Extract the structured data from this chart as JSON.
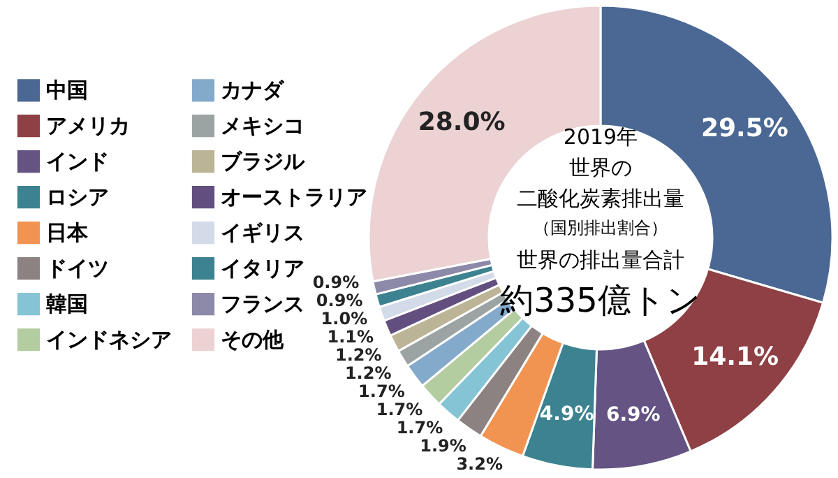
{
  "chart_data": {
    "type": "donut",
    "categories": [
      "中国",
      "アメリカ",
      "インド",
      "ロシア",
      "日本",
      "ドイツ",
      "韓国",
      "インドネシア",
      "カナダ",
      "メキシコ",
      "ブラジル",
      "オーストラリア",
      "イギリス",
      "イタリア",
      "フランス",
      "その他"
    ],
    "values": [
      29.5,
      14.1,
      6.9,
      4.9,
      3.2,
      1.9,
      1.7,
      1.7,
      1.7,
      1.2,
      1.2,
      1.1,
      1.0,
      0.9,
      0.9,
      28.0
    ],
    "colors": [
      "#4a6893",
      "#8e4044",
      "#645383",
      "#3c8290",
      "#f29451",
      "#8c8282",
      "#84c4d5",
      "#b3cca0",
      "#84aacb",
      "#9ca3a3",
      "#bcb496",
      "#634f7f",
      "#d3dae8",
      "#3d8290",
      "#8c8aa8",
      "#ecd2d3"
    ],
    "value_labels": [
      "29.5%",
      "14.1%",
      "6.9%",
      "4.9%",
      "3.2%",
      "1.9%",
      "1.7%",
      "1.7%",
      "1.7%",
      "1.2%",
      "1.2%",
      "1.1%",
      "1.0%",
      "0.9%",
      "0.9%",
      "28.0%"
    ],
    "annotations": [
      "2019年",
      "世界の",
      "二酸化炭素排出量",
      "（国別排出割合）",
      "世界の排出量合計",
      "約335億トン"
    ],
    "legend": "left"
  }
}
